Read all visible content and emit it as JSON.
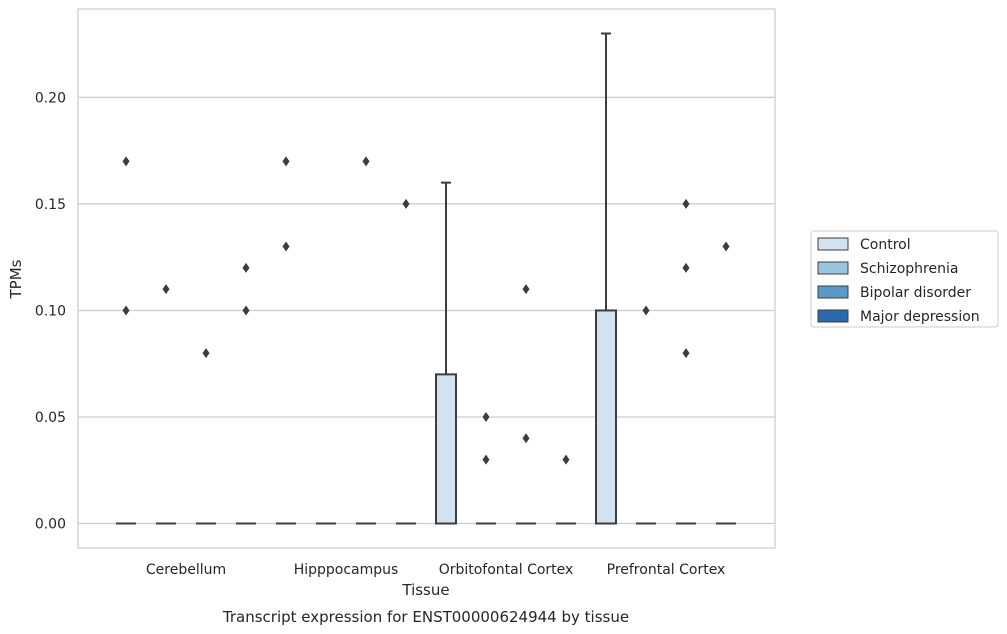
{
  "chart_data": {
    "type": "box",
    "title": "Transcript expression for ENST00000624944 by tissue",
    "xlabel": "Tissue",
    "ylabel": "TPMs",
    "ylim": [
      -0.0115,
      0.2415
    ],
    "yticks": [
      "0.00",
      "0.05",
      "0.10",
      "0.15",
      "0.20"
    ],
    "grid": "horizontal",
    "legend_placement": "right",
    "categories": [
      "Cerebellum",
      "Hipppocampus",
      "Orbitofontal Cortex",
      "Prefrontal Cortex"
    ],
    "colors": {
      "background": "#ffffff",
      "grid": "#cccccc",
      "box_edge": "#3d3d3d",
      "frame": "#cccccc",
      "text": "#262626"
    },
    "series": [
      {
        "name": "Control",
        "color": "#d3e2f1",
        "boxes": [
          {
            "q1": 0,
            "median": 0,
            "q3": 0,
            "whisker_low": 0,
            "whisker_high": 0,
            "outliers": [
              0.1,
              0.17
            ]
          },
          {
            "q1": 0,
            "median": 0,
            "q3": 0,
            "whisker_low": 0,
            "whisker_high": 0,
            "outliers": [
              0.13,
              0.17
            ]
          },
          {
            "q1": 0,
            "median": 0,
            "q3": 0.07,
            "whisker_low": 0,
            "whisker_high": 0.16,
            "outliers": []
          },
          {
            "q1": 0,
            "median": 0,
            "q3": 0.1,
            "whisker_low": 0,
            "whisker_high": 0.23,
            "outliers": []
          }
        ]
      },
      {
        "name": "Schizophrenia",
        "color": "#9ac5de",
        "boxes": [
          {
            "q1": 0,
            "median": 0,
            "q3": 0,
            "whisker_low": 0,
            "whisker_high": 0,
            "outliers": [
              0.11
            ]
          },
          {
            "q1": 0,
            "median": 0,
            "q3": 0,
            "whisker_low": 0,
            "whisker_high": 0,
            "outliers": []
          },
          {
            "q1": 0,
            "median": 0,
            "q3": 0,
            "whisker_low": 0,
            "whisker_high": 0,
            "outliers": [
              0.05,
              0.03
            ]
          },
          {
            "q1": 0,
            "median": 0,
            "q3": 0,
            "whisker_low": 0,
            "whisker_high": 0,
            "outliers": [
              0.1
            ]
          }
        ]
      },
      {
        "name": "Bipolar disorder",
        "color": "#5b9ac7",
        "boxes": [
          {
            "q1": 0,
            "median": 0,
            "q3": 0,
            "whisker_low": 0,
            "whisker_high": 0,
            "outliers": [
              0.08
            ]
          },
          {
            "q1": 0,
            "median": 0,
            "q3": 0,
            "whisker_low": 0,
            "whisker_high": 0,
            "outliers": [
              0.17
            ]
          },
          {
            "q1": 0,
            "median": 0,
            "q3": 0,
            "whisker_low": 0,
            "whisker_high": 0,
            "outliers": [
              0.11,
              0.04
            ]
          },
          {
            "q1": 0,
            "median": 0,
            "q3": 0,
            "whisker_low": 0,
            "whisker_high": 0,
            "outliers": [
              0.15,
              0.12,
              0.08
            ]
          }
        ]
      },
      {
        "name": "Major depression",
        "color": "#2a6aad",
        "boxes": [
          {
            "q1": 0,
            "median": 0,
            "q3": 0,
            "whisker_low": 0,
            "whisker_high": 0,
            "outliers": [
              0.12,
              0.1
            ]
          },
          {
            "q1": 0,
            "median": 0,
            "q3": 0,
            "whisker_low": 0,
            "whisker_high": 0,
            "outliers": [
              0.15
            ]
          },
          {
            "q1": 0,
            "median": 0,
            "q3": 0,
            "whisker_low": 0,
            "whisker_high": 0,
            "outliers": [
              0.03
            ]
          },
          {
            "q1": 0,
            "median": 0,
            "q3": 0,
            "whisker_low": 0,
            "whisker_high": 0,
            "outliers": [
              0.13
            ]
          }
        ]
      }
    ]
  }
}
